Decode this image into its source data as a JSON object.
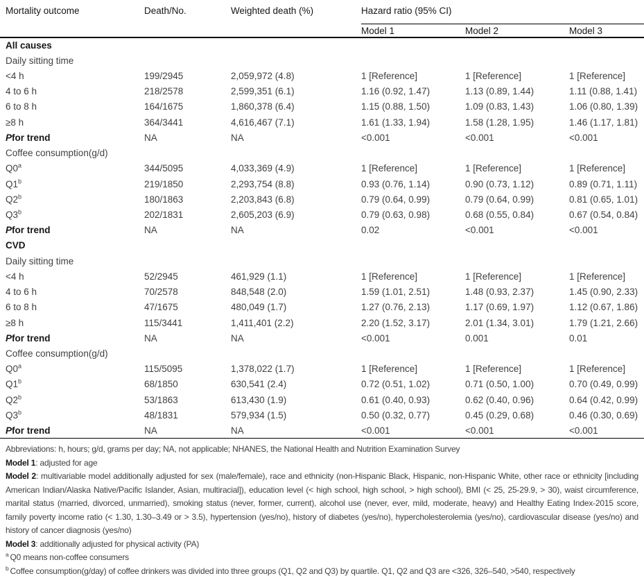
{
  "table": {
    "columns": [
      "Mortality outcome",
      "Death/No.",
      "Weighted death (%)"
    ],
    "hazard_header": "Hazard ratio (95% CI)",
    "model_columns": [
      "Model 1",
      "Model 2",
      "Model 3"
    ],
    "rows": [
      {
        "type": "section",
        "label": "All causes"
      },
      {
        "type": "subhead",
        "label": "Daily sitting time"
      },
      {
        "type": "data",
        "label": "<4 h",
        "cells": [
          "199/2945",
          "2,059,972 (4.8)",
          "1 [Reference]",
          "1 [Reference]",
          "1 [Reference]"
        ]
      },
      {
        "type": "data",
        "label": "4 to 6 h",
        "cells": [
          "218/2578",
          "2,599,351 (6.1)",
          "1.16 (0.92, 1.47)",
          "1.13 (0.89, 1.44)",
          "1.11 (0.88, 1.41)"
        ]
      },
      {
        "type": "data",
        "label": "6 to 8 h",
        "cells": [
          "164/1675",
          "1,860,378 (6.4)",
          "1.15 (0.88, 1.50)",
          "1.09 (0.83, 1.43)",
          "1.06 (0.80, 1.39)"
        ]
      },
      {
        "type": "data",
        "label": "≥8 h",
        "cells": [
          "364/3441",
          "4,616,467 (7.1)",
          "1.61 (1.33, 1.94)",
          "1.58 (1.28, 1.95)",
          "1.46 (1.17, 1.81)"
        ]
      },
      {
        "type": "ptrend",
        "label": "Pfor trend",
        "cells": [
          "NA",
          "NA",
          "<0.001",
          "<0.001",
          "<0.001"
        ]
      },
      {
        "type": "subhead",
        "label": "Coffee consumption(g/d)"
      },
      {
        "type": "data",
        "label": "Q0",
        "sup": "a",
        "cells": [
          "344/5095",
          "4,033,369 (4.9)",
          "1 [Reference]",
          "1 [Reference]",
          "1 [Reference]"
        ]
      },
      {
        "type": "data",
        "label": "Q1",
        "sup": "b",
        "cells": [
          "219/1850",
          "2,293,754 (8.8)",
          "0.93 (0.76, 1.14)",
          "0.90 (0.73, 1.12)",
          "0.89 (0.71, 1.11)"
        ]
      },
      {
        "type": "data",
        "label": "Q2",
        "sup": "b",
        "cells": [
          "180/1863",
          "2,203,843 (6.8)",
          "0.79 (0.64, 0.99)",
          "0.79 (0.64, 0.99)",
          "0.81 (0.65, 1.01)"
        ]
      },
      {
        "type": "data",
        "label": "Q3",
        "sup": "b",
        "cells": [
          "202/1831",
          "2,605,203 (6.9)",
          "0.79 (0.63, 0.98)",
          "0.68 (0.55, 0.84)",
          "0.67 (0.54, 0.84)"
        ]
      },
      {
        "type": "ptrend",
        "label": "Pfor trend",
        "cells": [
          "NA",
          "NA",
          "0.02",
          "<0.001",
          "<0.001"
        ]
      },
      {
        "type": "section",
        "label": "CVD"
      },
      {
        "type": "subhead",
        "label": "Daily sitting time"
      },
      {
        "type": "data",
        "label": "<4 h",
        "cells": [
          "52/2945",
          "461,929 (1.1)",
          "1 [Reference]",
          "1 [Reference]",
          "1 [Reference]"
        ]
      },
      {
        "type": "data",
        "label": "4 to 6 h",
        "cells": [
          "70/2578",
          "848,548 (2.0)",
          "1.59 (1.01, 2.51)",
          "1.48 (0.93, 2.37)",
          "1.45 (0.90, 2.33)"
        ]
      },
      {
        "type": "data",
        "label": "6 to 8 h",
        "cells": [
          "47/1675",
          "480,049 (1.7)",
          "1.27 (0.76, 2.13)",
          "1.17 (0.69, 1.97)",
          "1.12 (0.67, 1.86)"
        ]
      },
      {
        "type": "data",
        "label": "≥8 h",
        "cells": [
          "115/3441",
          "1,411,401 (2.2)",
          "2.20 (1.52, 3.17)",
          "2.01 (1.34, 3.01)",
          "1.79 (1.21, 2.66)"
        ]
      },
      {
        "type": "ptrend",
        "label": "Pfor trend",
        "cells": [
          "NA",
          "NA",
          "<0.001",
          "0.001",
          "0.01"
        ]
      },
      {
        "type": "subhead",
        "label": "Coffee consumption(g/d)"
      },
      {
        "type": "data",
        "label": "Q0",
        "sup": "a",
        "cells": [
          "115/5095",
          "1,378,022 (1.7)",
          "1 [Reference]",
          "1 [Reference]",
          "1 [Reference]"
        ]
      },
      {
        "type": "data",
        "label": "Q1",
        "sup": "b",
        "cells": [
          "68/1850",
          "630,541 (2.4)",
          "0.72 (0.51, 1.02)",
          "0.71 (0.50, 1.00)",
          "0.70 (0.49, 0.99)"
        ]
      },
      {
        "type": "data",
        "label": "Q2",
        "sup": "b",
        "cells": [
          "53/1863",
          "613,430 (1.9)",
          "0.61 (0.40, 0.93)",
          "0.62 (0.40, 0.96)",
          "0.64 (0.42, 0.99)"
        ]
      },
      {
        "type": "data",
        "label": "Q3",
        "sup": "b",
        "cells": [
          "48/1831",
          "579,934 (1.5)",
          "0.50 (0.32, 0.77)",
          "0.45 (0.29, 0.68)",
          "0.46 (0.30, 0.69)"
        ]
      },
      {
        "type": "ptrend",
        "label": "Pfor trend",
        "cells": [
          "NA",
          "NA",
          "<0.001",
          "<0.001",
          "<0.001"
        ]
      }
    ]
  },
  "footnotes": [
    {
      "label": "",
      "sup": "",
      "text": "Abbreviations: h, hours; g/d, grams per day; NA, not applicable; NHANES, the National Health and Nutrition Examination Survey",
      "justify": false
    },
    {
      "label": "Model 1",
      "sup": "",
      "text": ": adjusted for age",
      "justify": false
    },
    {
      "label": "Model 2",
      "sup": "",
      "text": ": multivariable model additionally adjusted for sex (male/female), race and ethnicity (non-Hispanic Black, Hispanic, non-Hispanic White, other race or ethnicity [including American Indian/Alaska Native/Pacific Islander, Asian, multiracial]), education level (< high school, high school, > high school), BMI (< 25, 25-29.9, > 30), waist circumference, marital status (married, divorced, unmarried), smoking status (never, former, current), alcohol use (never, ever, mild, moderate, heavy) and Healthy Eating Index-2015 score, family poverty income ratio (< 1.30, 1.30–3.49 or > 3.5), hypertension (yes/no), history of diabetes (yes/no), hypercholesterolemia (yes/no), cardiovascular disease (yes/no) and history of cancer diagnosis (yes/no)",
      "justify": true
    },
    {
      "label": "Model 3",
      "sup": "",
      "text": ": additionally adjusted for physical activity (PA)",
      "justify": false
    },
    {
      "label": "",
      "sup": "a",
      "text": "Q0 means non-coffee consumers",
      "justify": false
    },
    {
      "label": "",
      "sup": "b",
      "text": "Coffee consumption(g/day) of coffee drinkers was divided into three groups (Q1, Q2 and Q3) by quartile. Q1, Q2 and Q3 are <326, 326–540, >540, respectively",
      "justify": false
    }
  ]
}
